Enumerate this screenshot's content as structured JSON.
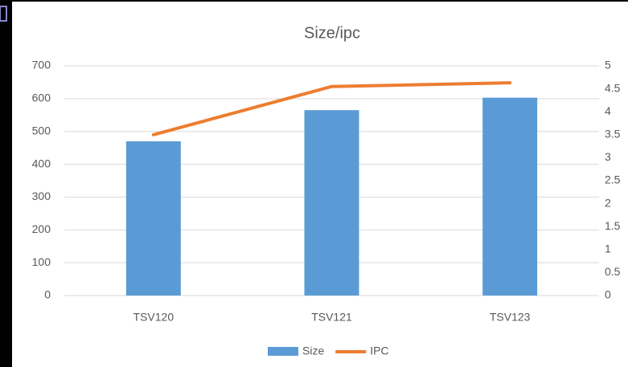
{
  "chart_data": {
    "type": "bar-line",
    "title": "Size/ipc",
    "categories": [
      "TSV120",
      "TSV121",
      "TSV123"
    ],
    "series": [
      {
        "name": "Size",
        "type": "bar",
        "color": "#5b9bd5",
        "values": [
          470,
          565,
          603
        ]
      },
      {
        "name": "IPC",
        "type": "line",
        "color": "#ed7d31",
        "axis": "y2",
        "values": [
          3.5,
          4.55,
          4.63
        ]
      }
    ],
    "ylim": [
      0,
      700
    ],
    "yticks": [
      0,
      100,
      200,
      300,
      400,
      500,
      600,
      700
    ],
    "y2lim": [
      0,
      5
    ],
    "y2ticks": [
      0,
      0.5,
      1,
      1.5,
      2,
      2.5,
      3,
      3.5,
      4,
      4.5,
      5
    ],
    "grid": true,
    "legend": "bottom"
  }
}
